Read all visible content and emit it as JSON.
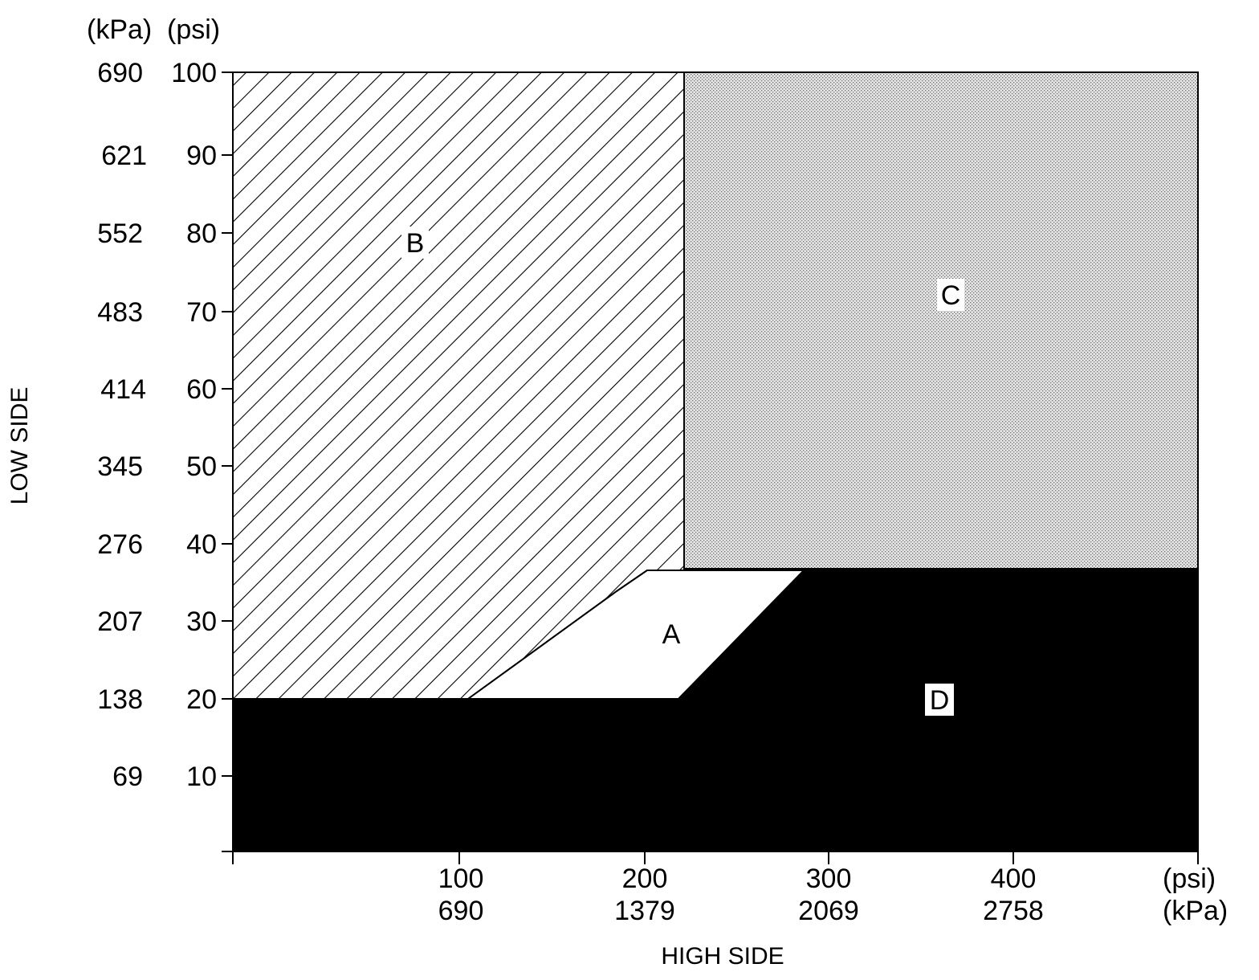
{
  "diagram": {
    "x_axis": {
      "title": "HIGH SIDE",
      "unit_psi": "(psi)",
      "unit_kpa": "(kPa)",
      "ticks": [
        {
          "psi": "100",
          "kpa": "690"
        },
        {
          "psi": "200",
          "kpa": "1379"
        },
        {
          "psi": "300",
          "kpa": "2069"
        },
        {
          "psi": "400",
          "kpa": "2758"
        }
      ]
    },
    "y_axis": {
      "title": "LOW SIDE",
      "unit_kpa": "(kPa)",
      "unit_psi": "(psi)",
      "ticks": [
        {
          "psi": "100",
          "kpa": "690"
        },
        {
          "psi": "90",
          "kpa": "621"
        },
        {
          "psi": "80",
          "kpa": "552"
        },
        {
          "psi": "70",
          "kpa": "483"
        },
        {
          "psi": "60",
          "kpa": "414"
        },
        {
          "psi": "50",
          "kpa": "345"
        },
        {
          "psi": "40",
          "kpa": "276"
        },
        {
          "psi": "30",
          "kpa": "207"
        },
        {
          "psi": "20",
          "kpa": "138"
        },
        {
          "psi": "10",
          "kpa": "69"
        }
      ]
    },
    "regions": {
      "a": "A",
      "b": "B",
      "c": "C",
      "d": "D"
    }
  }
}
